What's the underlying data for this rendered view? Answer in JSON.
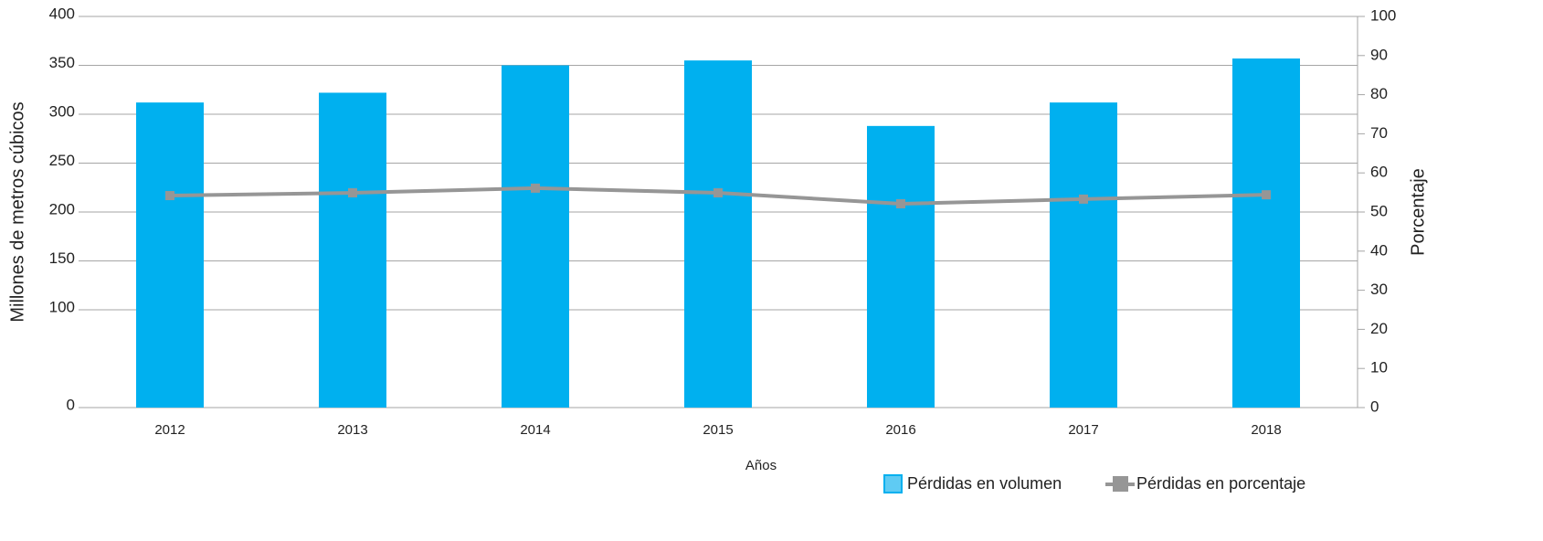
{
  "chart_data": {
    "type": "combo",
    "x_label": "Años",
    "y_label": "Millones de metros cúbicos",
    "y2_label": "Porcentaje",
    "categories": [
      "2012",
      "2013",
      "2014",
      "2015",
      "2016",
      "2017",
      "2018"
    ],
    "series": [
      {
        "name": "Pérdidas en volumen",
        "type": "bar",
        "color": "#00b0ef",
        "values": [
          312,
          322,
          350,
          355,
          288,
          312,
          357
        ]
      },
      {
        "name": "Pérdidas en porcentaje",
        "type": "line",
        "axis": "y2",
        "color": "#969696",
        "values": [
          54.2,
          54.9,
          56.1,
          54.9,
          52.1,
          53.3,
          54.4
        ]
      }
    ],
    "ylim": [
      0,
      400
    ],
    "yticks": [
      0,
      100,
      150,
      200,
      250,
      300,
      350,
      400
    ],
    "y2lim": [
      0,
      100
    ],
    "y2ticks": [
      0,
      10,
      20,
      30,
      40,
      50,
      60,
      70,
      80,
      90,
      100
    ],
    "grid": true,
    "legend": "bottom-right"
  }
}
